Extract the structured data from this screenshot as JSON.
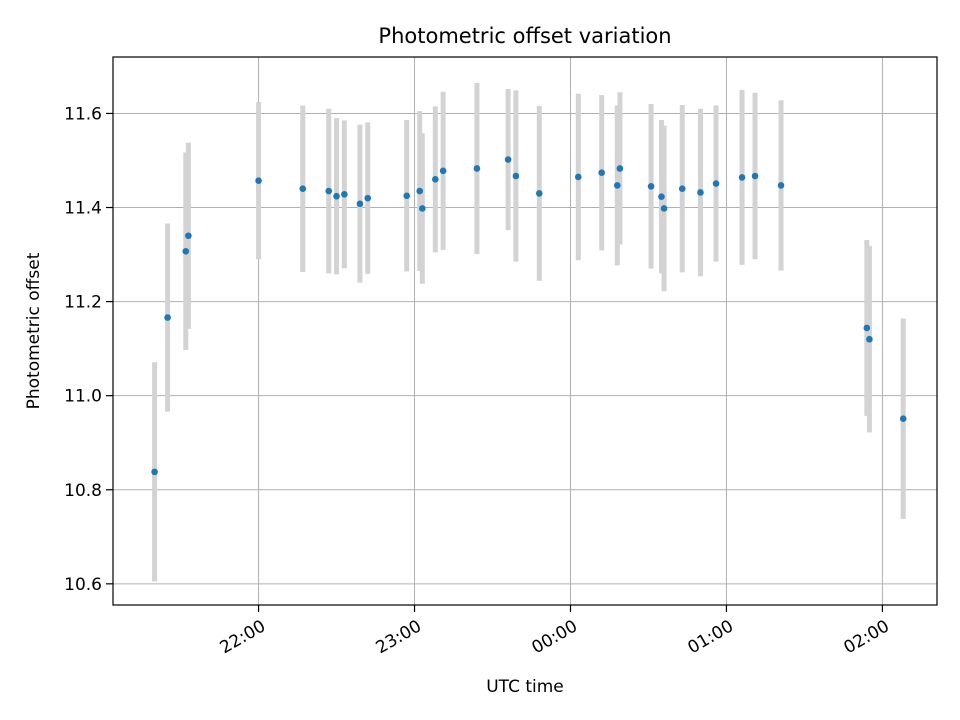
{
  "chart_data": {
    "type": "scatter",
    "title": "Photometric offset variation",
    "xlabel": "UTC time",
    "ylabel": "Photometric offset",
    "x_unit": "UTC time of day",
    "xlim": [
      "21:04",
      "02:21"
    ],
    "ylim": [
      10.555,
      11.72
    ],
    "x_ticks": [
      "22:00",
      "23:00",
      "00:00",
      "01:00",
      "02:00"
    ],
    "y_ticks": [
      "10.6",
      "10.8",
      "11.0",
      "11.2",
      "11.4",
      "11.6"
    ],
    "grid": true,
    "legend": "none",
    "colors": {
      "point": "#1f77b4",
      "errorbar": "#d3d3d3",
      "grid": "#b0b0b0"
    },
    "series": [
      {
        "points": [
          {
            "x": "21:20",
            "y": 10.838,
            "err": 0.233
          },
          {
            "x": "21:25",
            "y": 11.166,
            "err": 0.2
          },
          {
            "x": "21:32",
            "y": 11.307,
            "err": 0.21
          },
          {
            "x": "21:33",
            "y": 11.34,
            "err": 0.198
          },
          {
            "x": "22:00",
            "y": 11.457,
            "err": 0.167
          },
          {
            "x": "22:17",
            "y": 11.44,
            "err": 0.177
          },
          {
            "x": "22:27",
            "y": 11.435,
            "err": 0.175
          },
          {
            "x": "22:30",
            "y": 11.424,
            "err": 0.166
          },
          {
            "x": "22:33",
            "y": 11.428,
            "err": 0.157
          },
          {
            "x": "22:39",
            "y": 11.408,
            "err": 0.168
          },
          {
            "x": "22:42",
            "y": 11.42,
            "err": 0.161
          },
          {
            "x": "22:57",
            "y": 11.425,
            "err": 0.161
          },
          {
            "x": "23:02",
            "y": 11.435,
            "err": 0.17
          },
          {
            "x": "23:03",
            "y": 11.398,
            "err": 0.16
          },
          {
            "x": "23:08",
            "y": 11.46,
            "err": 0.155
          },
          {
            "x": "23:11",
            "y": 11.478,
            "err": 0.168
          },
          {
            "x": "23:24",
            "y": 11.483,
            "err": 0.182
          },
          {
            "x": "23:36",
            "y": 11.502,
            "err": 0.15
          },
          {
            "x": "23:39",
            "y": 11.467,
            "err": 0.182
          },
          {
            "x": "23:48",
            "y": 11.43,
            "err": 0.186
          },
          {
            "x": "00:03",
            "y": 11.465,
            "err": 0.177
          },
          {
            "x": "00:12",
            "y": 11.474,
            "err": 0.165
          },
          {
            "x": "00:18",
            "y": 11.447,
            "err": 0.17
          },
          {
            "x": "00:19",
            "y": 11.483,
            "err": 0.162
          },
          {
            "x": "00:31",
            "y": 11.445,
            "err": 0.175
          },
          {
            "x": "00:35",
            "y": 11.423,
            "err": 0.163
          },
          {
            "x": "00:36",
            "y": 11.398,
            "err": 0.176
          },
          {
            "x": "00:43",
            "y": 11.44,
            "err": 0.178
          },
          {
            "x": "00:50",
            "y": 11.432,
            "err": 0.178
          },
          {
            "x": "00:56",
            "y": 11.451,
            "err": 0.166
          },
          {
            "x": "01:06",
            "y": 11.464,
            "err": 0.186
          },
          {
            "x": "01:11",
            "y": 11.467,
            "err": 0.177
          },
          {
            "x": "01:21",
            "y": 11.447,
            "err": 0.181
          },
          {
            "x": "01:54",
            "y": 11.144,
            "err": 0.187
          },
          {
            "x": "01:55",
            "y": 11.12,
            "err": 0.198
          },
          {
            "x": "02:08",
            "y": 10.951,
            "err": 0.213
          }
        ]
      }
    ]
  }
}
